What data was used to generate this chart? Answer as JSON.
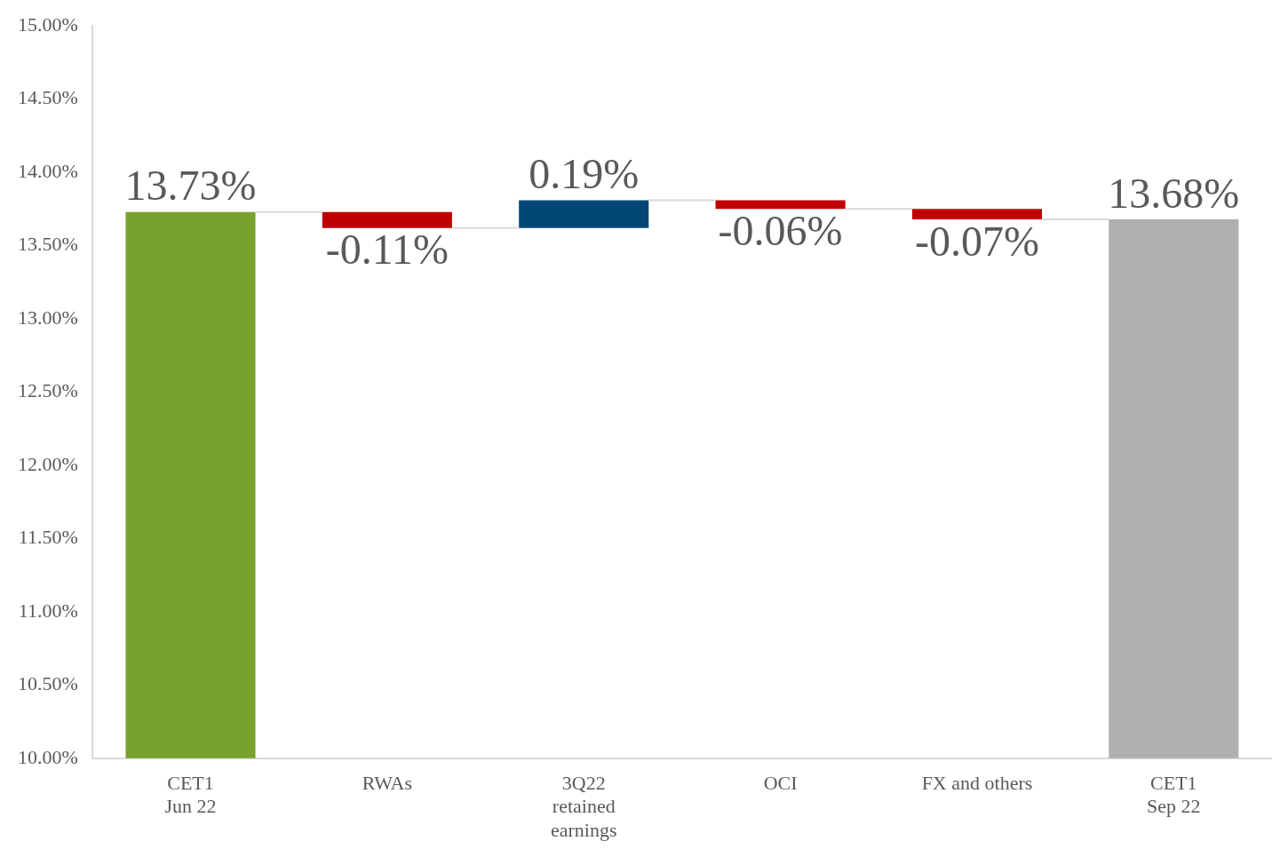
{
  "chart_data": {
    "type": "bar",
    "categories": [
      "CET1\nJun 22",
      "RWAs",
      "3Q22\nretained\nearnings",
      "OCI",
      "FX and others",
      "CET1\nSep 22"
    ],
    "values": [
      13.73,
      -0.11,
      0.19,
      -0.06,
      -0.07,
      13.68
    ],
    "base": [
      null,
      13.73,
      13.62,
      13.81,
      13.75,
      null
    ],
    "colors": [
      "#77a22f",
      "#c00000",
      "#004677",
      "#c00000",
      "#c00000",
      "#b0b0b0"
    ],
    "value_labels": [
      "13.73%",
      "-0.11%",
      "0.19%",
      "-0.06%",
      "-0.07%",
      "13.68%"
    ],
    "ylim": [
      10,
      15
    ],
    "yticks": [
      {
        "value": 10,
        "label": "10.00%"
      },
      {
        "value": 10.5,
        "label": "10.50%"
      },
      {
        "value": 11,
        "label": "11.00%"
      },
      {
        "value": 11.5,
        "label": "11.50%"
      },
      {
        "value": 12,
        "label": "12.00%"
      },
      {
        "value": 12.5,
        "label": "12.50%"
      },
      {
        "value": 13,
        "label": "13.00%"
      },
      {
        "value": 13.5,
        "label": "13.50%"
      },
      {
        "value": 14,
        "label": "14.00%"
      },
      {
        "value": 14.5,
        "label": "14.50%"
      },
      {
        "value": 15,
        "label": "15.00%"
      }
    ],
    "grid": false,
    "legend": false
  }
}
